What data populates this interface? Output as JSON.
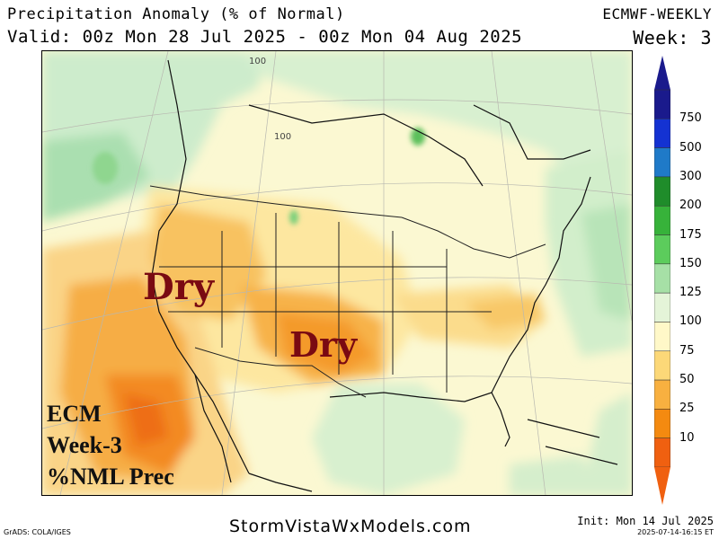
{
  "header": {
    "title": "Precipitation Anomaly (% of Normal)",
    "valid": "Valid: 00z Mon 28 Jul 2025 - 00z Mon 04 Aug 2025",
    "model": "ECMWF-WEEKLY",
    "week": "Week: 3"
  },
  "map": {
    "contour_labels": [
      "100",
      "100"
    ],
    "annotations": [
      "Dry",
      "Dry"
    ],
    "label_lines": [
      "ECM",
      "Week-3",
      "%NML Prec"
    ]
  },
  "colorbar": {
    "labels": [
      "750",
      "500",
      "300",
      "200",
      "175",
      "150",
      "125",
      "100",
      "75",
      "50",
      "25",
      "10"
    ],
    "colors": [
      "#1a1a8c",
      "#1432d2",
      "#1f7ac8",
      "#1f8c2a",
      "#37b23a",
      "#5ccc5c",
      "#a6e0a6",
      "#e4f4d8",
      "#fff8c8",
      "#fcd878",
      "#f8b040",
      "#f48a10",
      "#f06010"
    ]
  },
  "footer": {
    "grads": "GrADS: COLA/IGES",
    "site": "StormVistaWxModels.com",
    "init": "Init: Mon 14 Jul 2025",
    "stamp": "2025-07-14-16:15 ET"
  }
}
